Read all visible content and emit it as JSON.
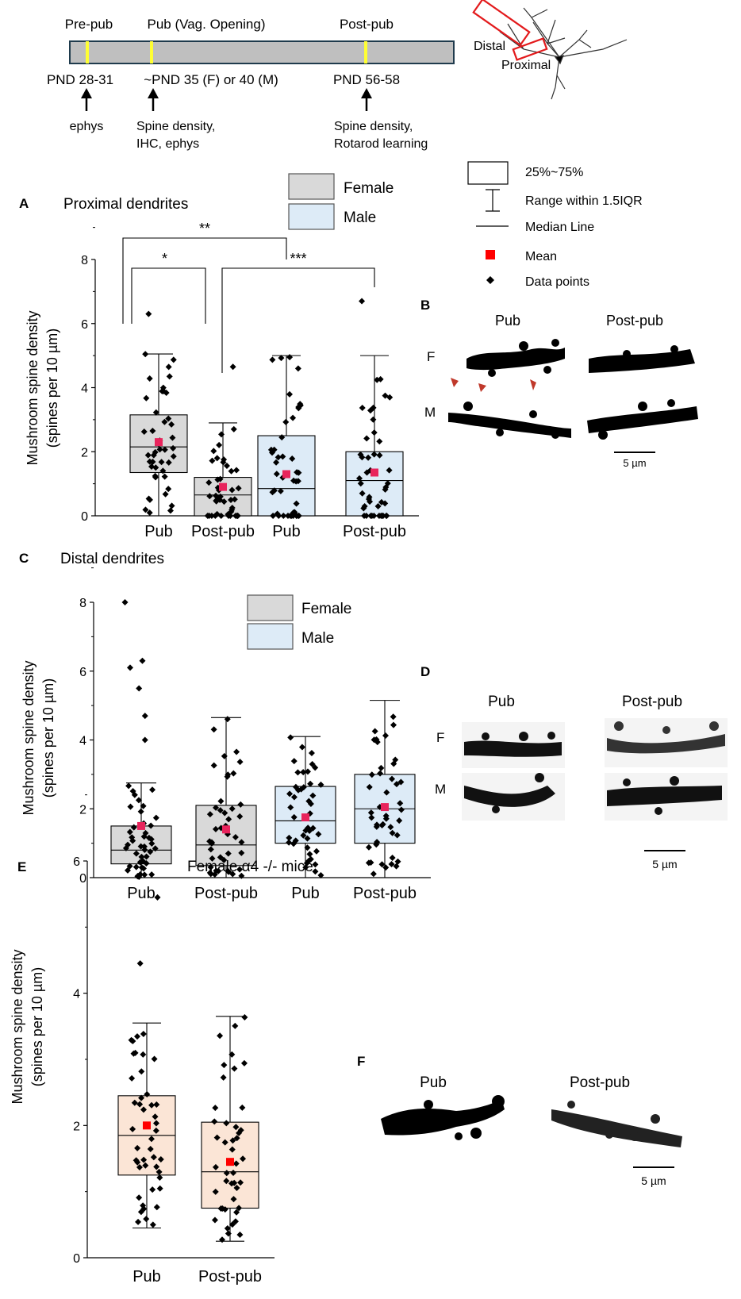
{
  "timeline": {
    "labels_top": [
      "Pre-pub",
      "Pub (Vag. Opening)",
      "Post-pub"
    ],
    "labels_bottom": [
      "PND 28-31",
      "~PND 35 (F) or 40 (M)",
      "PND 56-58"
    ],
    "notes": [
      [
        "ephys"
      ],
      [
        "Spine density,",
        "IHC,  ephys"
      ],
      [
        "Spine density,",
        "Rotarod learning"
      ]
    ],
    "bar_color": "#bfbfbf",
    "marker_color": "#ffff33"
  },
  "neuron": {
    "distal_label": "Distal",
    "proximal_label": "Proximal"
  },
  "legend": {
    "female": "Female",
    "male": "Male",
    "box": "25%~75%",
    "range": "Range within 1.5IQR",
    "median": "Median Line",
    "mean": "Mean",
    "points": "Data points"
  },
  "colors": {
    "female": "#d9d9d9",
    "male": "#ddebf7",
    "alpha4": "#fbe5d6",
    "mean": "#e8245c",
    "mean_e": "#ff0000"
  },
  "images": {
    "B": {
      "letter": "B",
      "col1": "Pub",
      "col2": "Post-pub",
      "row1": "F",
      "row2": "M",
      "scale": "5 µm"
    },
    "D": {
      "letter": "D",
      "col1": "Pub",
      "col2": "Post-pub",
      "row1": "F",
      "row2": "M",
      "scale": "5 µm"
    },
    "F": {
      "letter": "F",
      "col1": "Pub",
      "col2": "Post-pub",
      "scale": "5 µm"
    }
  },
  "chart_data": [
    {
      "panel": "A",
      "type": "box",
      "title": "Proximal dendrites",
      "ylabel": [
        "Mushroom spine density",
        "(spines per 10 µm)"
      ],
      "ylim": [
        0,
        8
      ],
      "yticks": [
        0,
        2,
        4,
        6,
        8
      ],
      "categories": [
        "Pub",
        "Post-pub",
        "Pub",
        "Post-pub"
      ],
      "groups": [
        "Female",
        "Female",
        "Male",
        "Male"
      ],
      "stats": [
        {
          "q1": 1.35,
          "median": 2.15,
          "q3": 3.15,
          "whisker_low": 0,
          "whisker_high": 5.05,
          "mean": 2.3
        },
        {
          "q1": 0,
          "median": 0.65,
          "q3": 1.2,
          "whisker_low": 0,
          "whisker_high": 2.9,
          "mean": 0.9
        },
        {
          "q1": 0,
          "median": 0.85,
          "q3": 2.5,
          "whisker_low": 0,
          "whisker_high": 5.0,
          "mean": 1.3
        },
        {
          "q1": 0,
          "median": 1.1,
          "q3": 2.0,
          "whisker_low": 0,
          "whisker_high": 5.0,
          "mean": 1.35
        }
      ],
      "outliers": [
        [
          6.3
        ],
        [
          4.65
        ],
        [],
        [
          6.7
        ]
      ],
      "significance": [
        {
          "from": 0,
          "to": 1,
          "label": "*"
        },
        {
          "from": 0,
          "to": 2,
          "label": "**"
        },
        {
          "from": 1,
          "to": 3,
          "label": "***"
        }
      ]
    },
    {
      "panel": "C",
      "type": "box",
      "title": "Distal dendrites",
      "ylabel": [
        "Mushroom spine density",
        "(spines per 10 µm)"
      ],
      "ylim": [
        0,
        8
      ],
      "yticks": [
        0,
        2,
        4,
        6,
        8
      ],
      "categories": [
        "Pub",
        "Post-pub",
        "Pub",
        "Post-pub"
      ],
      "groups": [
        "Female",
        "Female",
        "Male",
        "Male"
      ],
      "stats": [
        {
          "q1": 0.4,
          "median": 0.8,
          "q3": 1.5,
          "whisker_low": 0,
          "whisker_high": 2.75,
          "mean": 1.5
        },
        {
          "q1": 0.35,
          "median": 0.95,
          "q3": 2.1,
          "whisker_low": 0,
          "whisker_high": 4.65,
          "mean": 1.4
        },
        {
          "q1": 1.0,
          "median": 1.65,
          "q3": 2.65,
          "whisker_low": 0,
          "whisker_high": 4.1,
          "mean": 1.75
        },
        {
          "q1": 1.0,
          "median": 2.0,
          "q3": 3.0,
          "whisker_low": 0,
          "whisker_high": 5.15,
          "mean": 2.05
        }
      ],
      "outliers": [
        [
          8.0,
          6.3,
          6.1,
          5.5,
          4.7,
          4.0
        ],
        [],
        [],
        []
      ]
    },
    {
      "panel": "E",
      "type": "box",
      "title": "Female α4 -/- mice",
      "ylabel": [
        "Mushroom spine density",
        "(spines per 10 µm)"
      ],
      "ylim": [
        0,
        6
      ],
      "yticks": [
        0,
        2,
        4,
        6
      ],
      "categories": [
        "Pub",
        "Post-pub"
      ],
      "stats": [
        {
          "q1": 1.25,
          "median": 1.85,
          "q3": 2.45,
          "whisker_low": 0.45,
          "whisker_high": 3.55,
          "mean": 2.0
        },
        {
          "q1": 0.75,
          "median": 1.3,
          "q3": 2.05,
          "whisker_low": 0.25,
          "whisker_high": 3.65,
          "mean": 1.45
        }
      ],
      "outliers": [
        [
          5.45,
          4.45
        ],
        []
      ]
    }
  ]
}
